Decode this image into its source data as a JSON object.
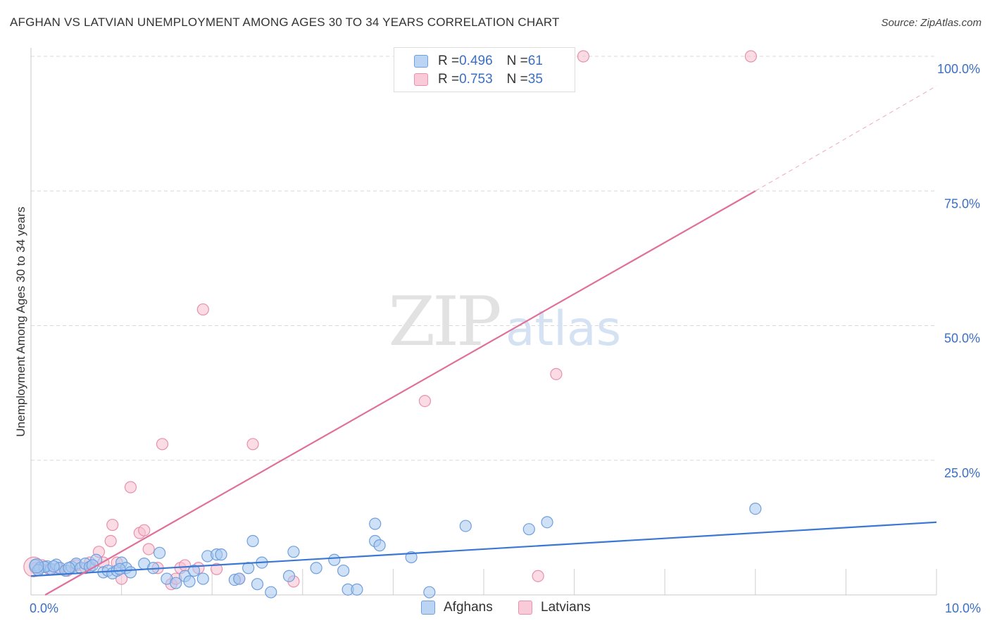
{
  "header": {
    "title": "AFGHAN VS LATVIAN UNEMPLOYMENT AMONG AGES 30 TO 34 YEARS CORRELATION CHART",
    "source": "Source: ZipAtlas.com"
  },
  "watermark": {
    "zip": "ZIP",
    "atlas": "atlas"
  },
  "legend": {
    "afghan": {
      "r_label": "R = ",
      "r_value": "0.496",
      "n_label": "N = ",
      "n_value": "61"
    },
    "latvian": {
      "r_label": "R = ",
      "r_value": "0.753",
      "n_label": "N = ",
      "n_value": "35"
    }
  },
  "bottom_legend": {
    "afghan_label": "Afghans",
    "latvian_label": "Latvians"
  },
  "colors": {
    "afghan_fill": "#a8c8f0",
    "afghan_stroke": "#6f9fdc",
    "afghan_line": "#3a78d4",
    "latvian_fill": "#f8c0d0",
    "latvian_stroke": "#e890ac",
    "latvian_line": "#e0709a",
    "tick_label": "#3a6fc4",
    "grid": "#d8d8d8"
  },
  "chart_data": {
    "type": "scatter",
    "title": "AFGHAN VS LATVIAN UNEMPLOYMENT AMONG AGES 30 TO 34 YEARS CORRELATION CHART",
    "xlabel": "",
    "ylabel": "Unemployment Among Ages 30 to 34 years",
    "xlim": [
      0,
      10
    ],
    "ylim": [
      0,
      100
    ],
    "x_tick_labels": [
      "0.0%",
      "10.0%"
    ],
    "y_ticks": [
      25,
      50,
      75,
      100
    ],
    "y_tick_labels": [
      "25.0%",
      "50.0%",
      "75.0%",
      "100.0%"
    ],
    "series": [
      {
        "name": "Afghans",
        "r": 0.496,
        "n": 61,
        "trend": {
          "x0": 0,
          "y0": 3.5,
          "x1": 10,
          "y1": 13.5
        },
        "points": [
          [
            0.05,
            5.5
          ],
          [
            0.1,
            5
          ],
          [
            0.18,
            5.3
          ],
          [
            0.22,
            4.8
          ],
          [
            0.28,
            5.6
          ],
          [
            0.32,
            5
          ],
          [
            0.38,
            4.5
          ],
          [
            0.45,
            5.2
          ],
          [
            0.5,
            5.8
          ],
          [
            0.55,
            5
          ],
          [
            0.6,
            5.8
          ],
          [
            0.65,
            5.2
          ],
          [
            0.72,
            6.5
          ],
          [
            0.8,
            4.2
          ],
          [
            0.85,
            4.5
          ],
          [
            0.9,
            4
          ],
          [
            0.95,
            4.5
          ],
          [
            1.0,
            6
          ],
          [
            1.05,
            5
          ],
          [
            1.1,
            4.2
          ],
          [
            1.5,
            3
          ],
          [
            1.6,
            2.2
          ],
          [
            1.7,
            3.5
          ],
          [
            1.75,
            2.5
          ],
          [
            1.8,
            4.5
          ],
          [
            1.9,
            3
          ],
          [
            1.95,
            7.2
          ],
          [
            2.05,
            7.5
          ],
          [
            2.1,
            7.5
          ],
          [
            2.25,
            2.8
          ],
          [
            2.3,
            3
          ],
          [
            2.4,
            5
          ],
          [
            2.45,
            10
          ],
          [
            2.5,
            2
          ],
          [
            2.55,
            6
          ],
          [
            2.65,
            0.5
          ],
          [
            2.85,
            3.5
          ],
          [
            2.9,
            8
          ],
          [
            3.15,
            5
          ],
          [
            3.35,
            6.5
          ],
          [
            3.45,
            4.5
          ],
          [
            3.5,
            1
          ],
          [
            3.6,
            1
          ],
          [
            3.8,
            10
          ],
          [
            3.85,
            9.2
          ],
          [
            3.8,
            13.2
          ],
          [
            4.2,
            7
          ],
          [
            4.4,
            0.5
          ],
          [
            4.8,
            12.8
          ],
          [
            5.5,
            12.2
          ],
          [
            5.7,
            13.5
          ],
          [
            8.0,
            16
          ],
          [
            0.15,
            5.2
          ],
          [
            0.42,
            5
          ],
          [
            0.68,
            5.5
          ],
          [
            0.98,
            4.8
          ],
          [
            1.25,
            5.8
          ],
          [
            1.42,
            7.8
          ],
          [
            1.35,
            5
          ],
          [
            0.25,
            5.3
          ],
          [
            0.08,
            4.6
          ]
        ]
      },
      {
        "name": "Latvians",
        "r": 0.753,
        "n": 35,
        "trend": {
          "x0": 0,
          "y0": -1.5,
          "x1": 8,
          "y1": 75,
          "dashed_to": {
            "x": 10,
            "y": 94.5
          }
        },
        "points": [
          [
            0.05,
            5
          ],
          [
            0.12,
            5.5
          ],
          [
            0.2,
            4.8
          ],
          [
            0.3,
            5
          ],
          [
            0.4,
            4.5
          ],
          [
            0.5,
            5.5
          ],
          [
            0.6,
            5
          ],
          [
            0.65,
            6
          ],
          [
            0.75,
            8
          ],
          [
            0.8,
            6
          ],
          [
            0.88,
            10
          ],
          [
            0.9,
            13
          ],
          [
            0.95,
            6
          ],
          [
            1.0,
            3
          ],
          [
            1.1,
            20
          ],
          [
            1.2,
            11.5
          ],
          [
            1.25,
            12
          ],
          [
            1.3,
            8.5
          ],
          [
            1.4,
            5
          ],
          [
            1.45,
            28
          ],
          [
            1.55,
            2
          ],
          [
            1.6,
            3
          ],
          [
            1.65,
            5
          ],
          [
            1.7,
            5.5
          ],
          [
            1.9,
            53
          ],
          [
            2.05,
            4.8
          ],
          [
            2.3,
            3
          ],
          [
            2.45,
            28
          ],
          [
            2.9,
            2.5
          ],
          [
            4.35,
            36
          ],
          [
            5.6,
            3.5
          ],
          [
            5.8,
            41
          ],
          [
            6.1,
            100
          ],
          [
            7.95,
            100
          ],
          [
            1.85,
            5
          ]
        ]
      }
    ]
  }
}
